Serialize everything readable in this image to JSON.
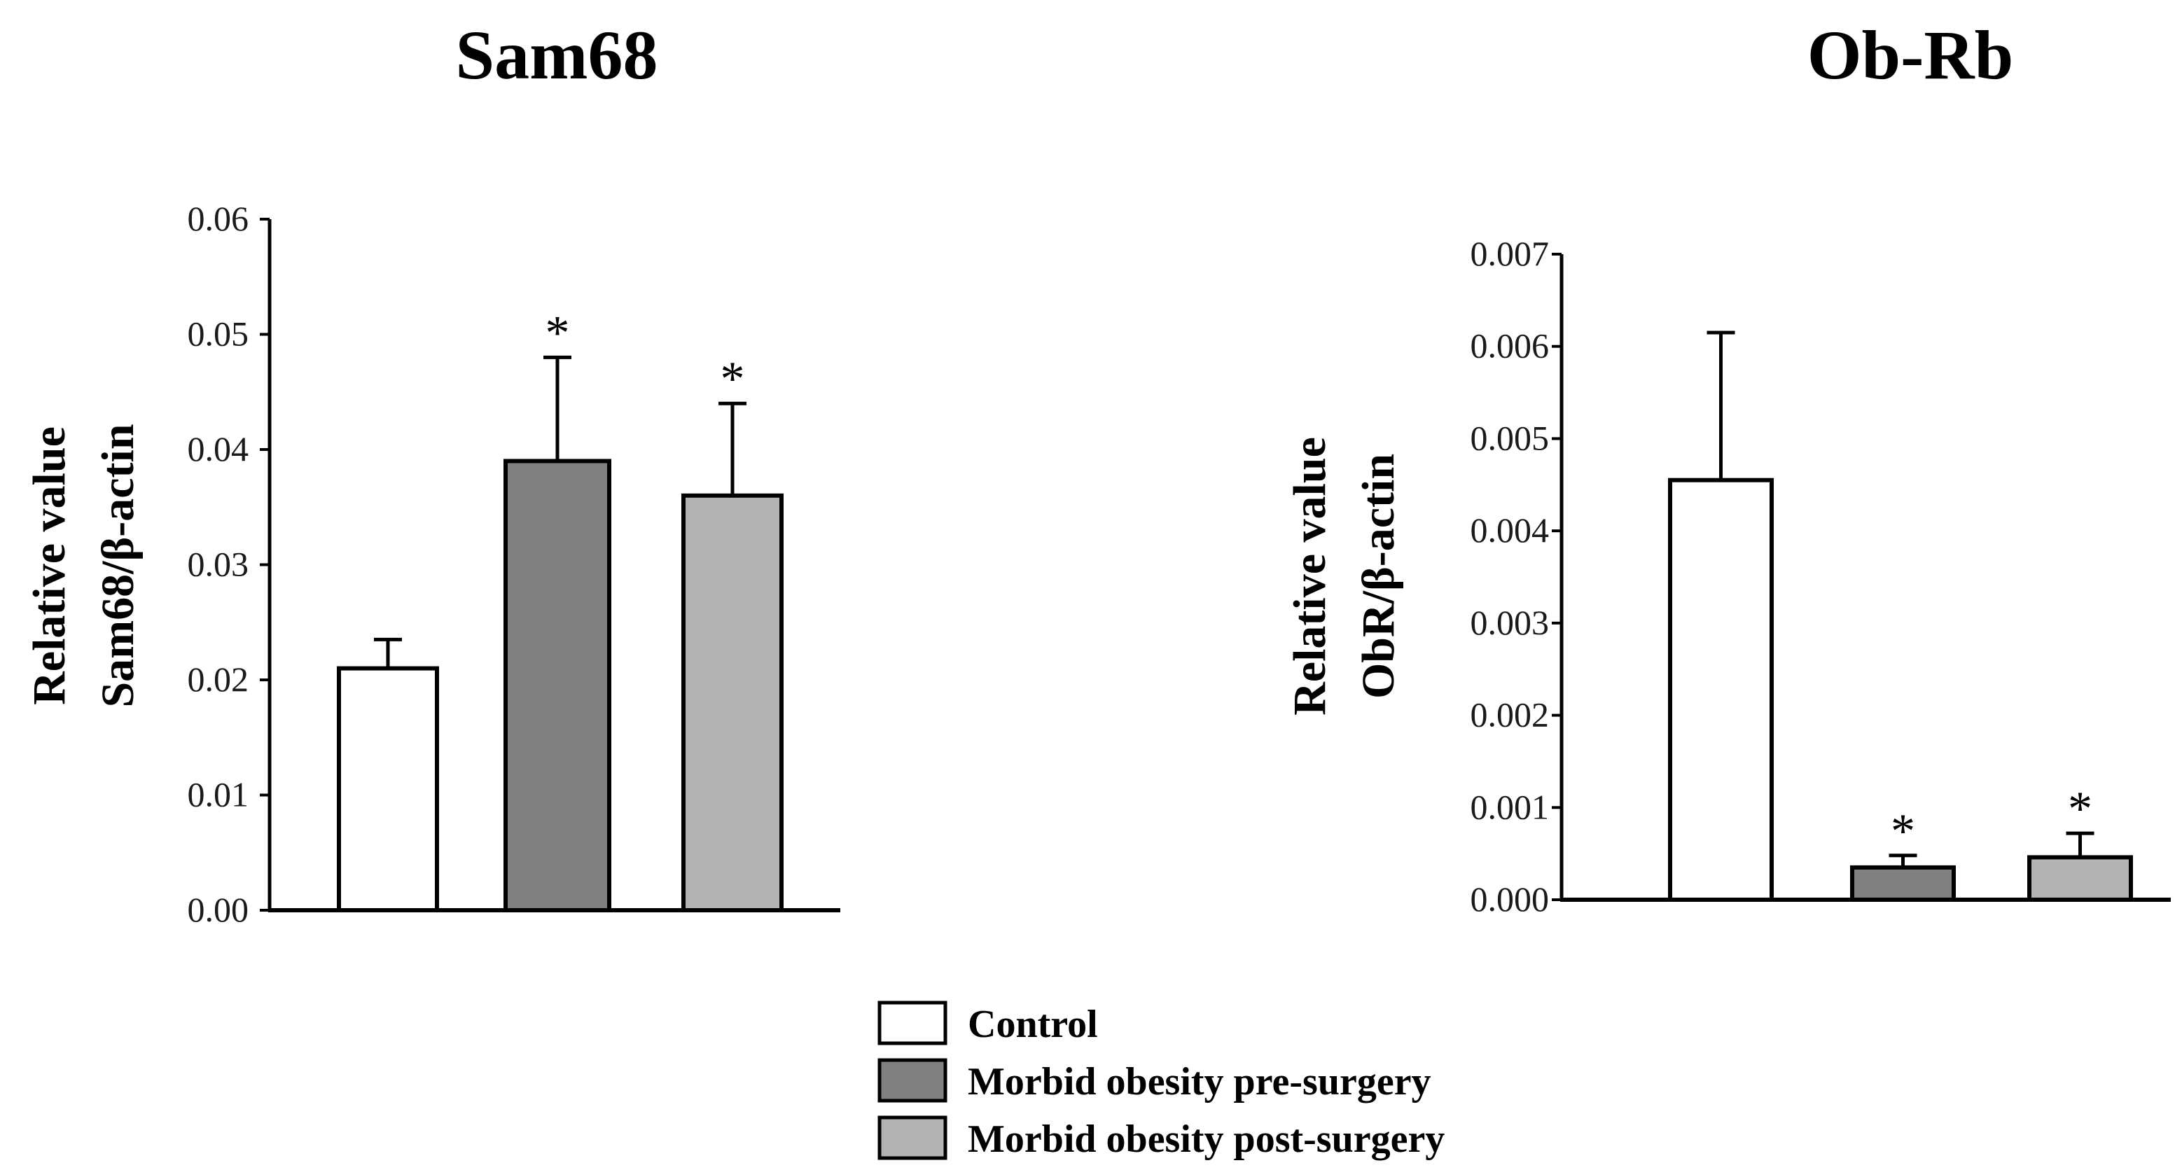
{
  "legend": [
    {
      "label": "Control",
      "color": "#ffffff"
    },
    {
      "label": "Morbid obesity pre-surgery",
      "color": "#808080"
    },
    {
      "label": "Morbid obesity post-surgery",
      "color": "#b3b3b3"
    }
  ],
  "chart_data": [
    {
      "type": "bar",
      "title": "Sam68",
      "ylabel_line1": "Relative value",
      "ylabel_line2": "Sam68/β-actin",
      "categories": [
        "Control",
        "Morbid obesity pre-surgery",
        "Morbid obesity post-surgery"
      ],
      "values": [
        0.021,
        0.039,
        0.036
      ],
      "errors": [
        0.0025,
        0.009,
        0.008
      ],
      "significance": [
        "",
        "*",
        "*"
      ],
      "colors": [
        "#ffffff",
        "#808080",
        "#b3b3b3"
      ],
      "ylim": [
        0,
        0.06
      ],
      "yticks": [
        0,
        0.01,
        0.02,
        0.03,
        0.04,
        0.05,
        0.06
      ],
      "ytick_labels": [
        "0.00",
        "0.01",
        "0.02",
        "0.03",
        "0.04",
        "0.05",
        "0.06"
      ]
    },
    {
      "type": "bar",
      "title": "Ob-Rb",
      "ylabel_line1": "Relative value",
      "ylabel_line2": "ObR/β-actin",
      "categories": [
        "Control",
        "Morbid obesity pre-surgery",
        "Morbid obesity post-surgery"
      ],
      "values": [
        0.00455,
        0.00035,
        0.00046
      ],
      "errors": [
        0.0016,
        0.00013,
        0.00026
      ],
      "significance": [
        "",
        "*",
        "*"
      ],
      "colors": [
        "#ffffff",
        "#808080",
        "#b3b3b3"
      ],
      "ylim": [
        0,
        0.007
      ],
      "yticks": [
        0,
        0.001,
        0.002,
        0.003,
        0.004,
        0.005,
        0.006,
        0.007
      ],
      "ytick_labels": [
        "0.000",
        "0.001",
        "0.002",
        "0.003",
        "0.004",
        "0.005",
        "0.006",
        "0.007"
      ]
    }
  ]
}
